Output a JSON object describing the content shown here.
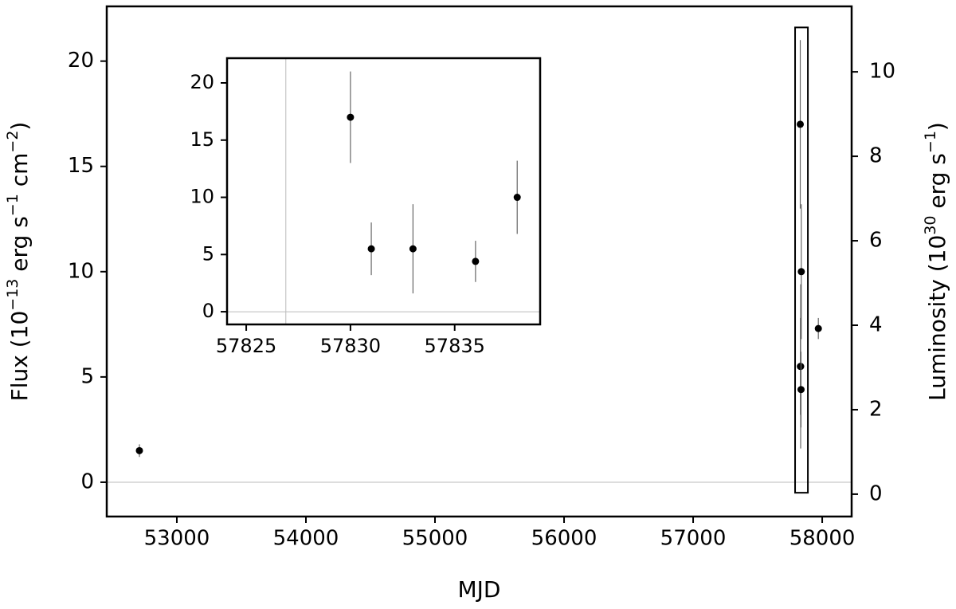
{
  "chart_data": [
    {
      "type": "scatter",
      "xlabel": "MJD",
      "ylabel_parts": [
        "Flux (10",
        "−13",
        " erg s",
        "−1",
        " cm",
        "−2",
        ")"
      ],
      "y2label_parts": [
        "Luminosity (10",
        "30",
        " erg s",
        "−1",
        ")"
      ],
      "series": [
        {
          "color": "#000000",
          "x": [
            52710,
            57830,
            57831,
            57833,
            57836,
            57838,
            57970
          ],
          "values": [
            1.5,
            17,
            5.5,
            5.5,
            4.4,
            10,
            7.3
          ],
          "errors": [
            0.3,
            4,
            2.3,
            3.9,
            1.8,
            3.2,
            0.5
          ]
        }
      ],
      "xlim": [
        52457,
        58228
      ],
      "xticks": [
        53000,
        54000,
        55000,
        56000,
        57000,
        58000
      ],
      "ylim": [
        -1.63,
        22.6
      ],
      "yticks": [
        0,
        5,
        10,
        15,
        20
      ],
      "y2lim": [
        -0.53,
        11.55
      ],
      "y2ticks": [
        0,
        2,
        4,
        6,
        8,
        10
      ],
      "hlines": [
        0
      ],
      "inset_region": {
        "x": [
          57790,
          57889
        ],
        "y": [
          -0.5,
          21.6
        ]
      }
    },
    {
      "type": "scatter",
      "series": [
        {
          "color": "#000000",
          "x": [
            57830,
            57831,
            57833,
            57836,
            57838
          ],
          "values": [
            17,
            5.5,
            5.5,
            4.4,
            10
          ],
          "errors": [
            4,
            2.3,
            3.9,
            1.8,
            3.2
          ]
        }
      ],
      "xlim": [
        57824.08,
        57839.1
      ],
      "xticks": [
        57825,
        57830,
        57835
      ],
      "ylim": [
        -1.11,
        22.16
      ],
      "yticks": [
        0,
        5,
        10,
        15,
        20
      ],
      "hlines": [
        0
      ],
      "vlines": [
        57826.9
      ]
    }
  ]
}
